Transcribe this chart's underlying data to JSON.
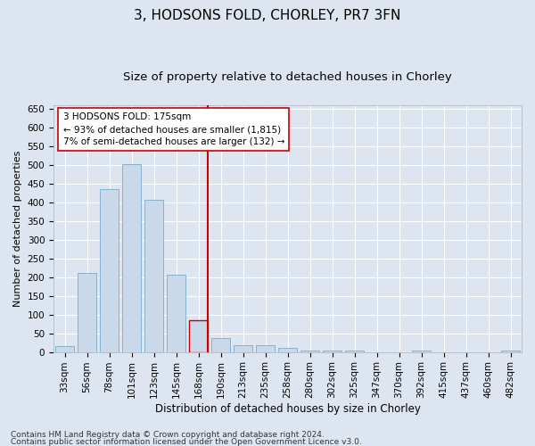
{
  "title": "3, HODSONS FOLD, CHORLEY, PR7 3FN",
  "subtitle": "Size of property relative to detached houses in Chorley",
  "xlabel": "Distribution of detached houses by size in Chorley",
  "ylabel": "Number of detached properties",
  "footer1": "Contains HM Land Registry data © Crown copyright and database right 2024.",
  "footer2": "Contains public sector information licensed under the Open Government Licence v3.0.",
  "categories": [
    "33sqm",
    "56sqm",
    "78sqm",
    "101sqm",
    "123sqm",
    "145sqm",
    "168sqm",
    "190sqm",
    "213sqm",
    "235sqm",
    "258sqm",
    "280sqm",
    "302sqm",
    "325sqm",
    "347sqm",
    "370sqm",
    "392sqm",
    "415sqm",
    "437sqm",
    "460sqm",
    "482sqm"
  ],
  "values": [
    15,
    212,
    435,
    502,
    407,
    207,
    85,
    38,
    18,
    17,
    10,
    5,
    4,
    4,
    0,
    0,
    4,
    0,
    0,
    0,
    4
  ],
  "bar_color": "#c9d9ea",
  "bar_edge_color": "#7aaac8",
  "highlighted_bar_index": 6,
  "highlighted_bar_edge_color": "#cc0000",
  "vline_color": "#cc0000",
  "vline_bar_index": 6,
  "annotation_text": "3 HODSONS FOLD: 175sqm\n← 93% of detached houses are smaller (1,815)\n7% of semi-detached houses are larger (132) →",
  "annotation_box_color": "#ffffff",
  "annotation_box_edge_color": "#cc0000",
  "ylim": [
    0,
    660
  ],
  "yticks": [
    0,
    50,
    100,
    150,
    200,
    250,
    300,
    350,
    400,
    450,
    500,
    550,
    600,
    650
  ],
  "bg_color": "#dde6f0",
  "plot_bg_color": "#dde6f0",
  "grid_color": "#ffffff",
  "title_fontsize": 11,
  "subtitle_fontsize": 9.5,
  "ylabel_fontsize": 8,
  "xlabel_fontsize": 8.5,
  "tick_fontsize": 7.5,
  "annotation_fontsize": 7.5,
  "footer_fontsize": 6.5
}
